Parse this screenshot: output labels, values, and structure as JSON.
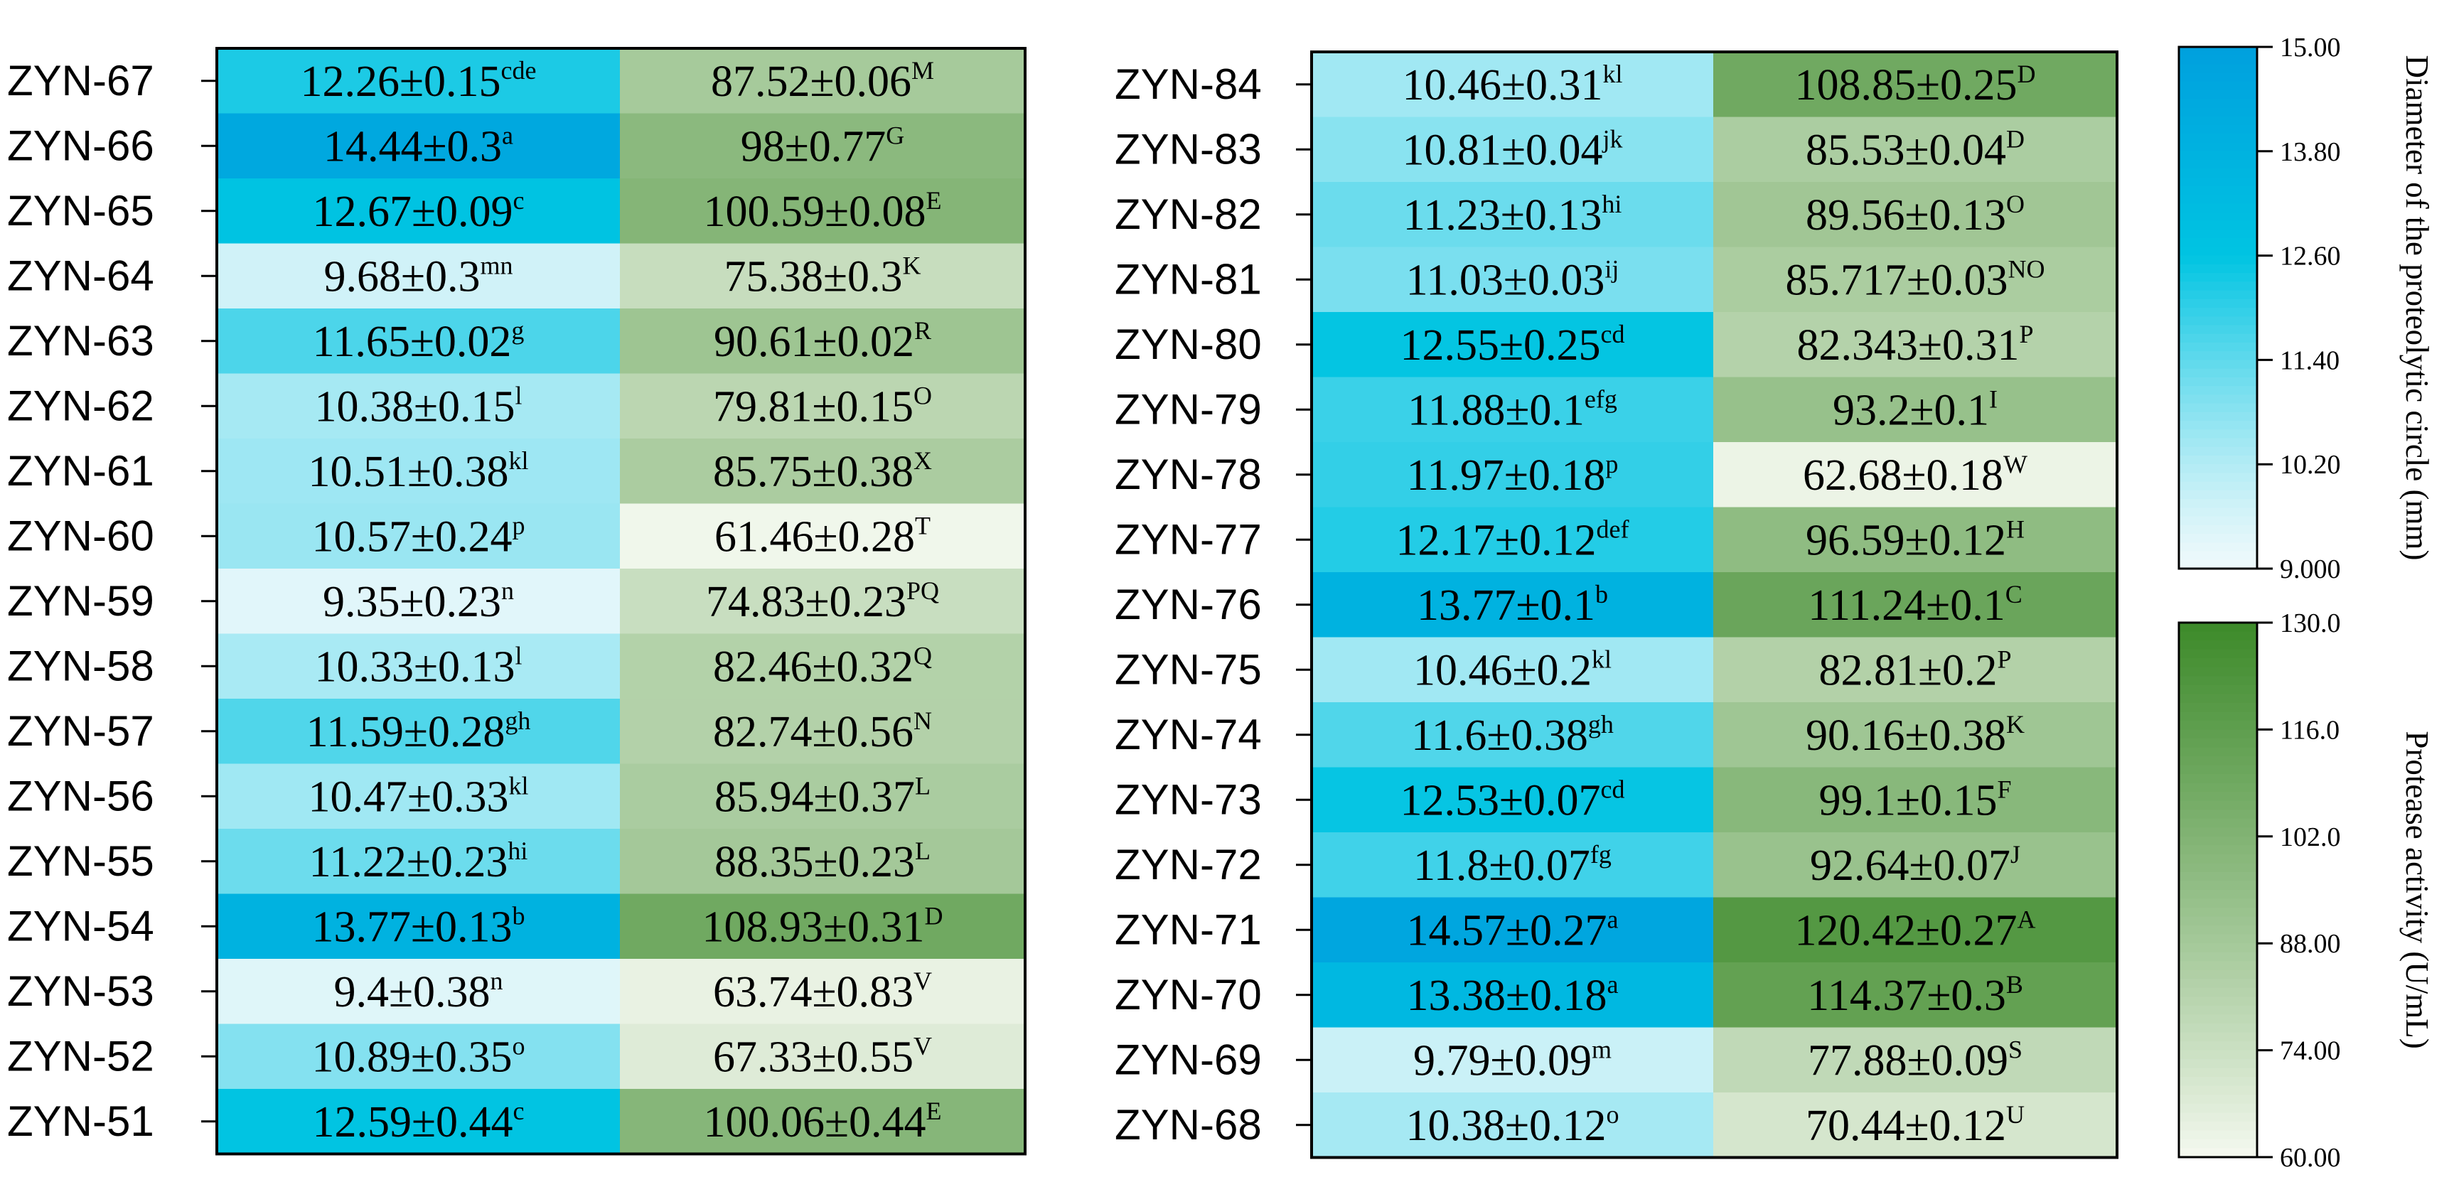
{
  "chart_data": {
    "type": "heatmap",
    "columns": [
      "Diameter of the proteolytic circle (mm)",
      "Protease activity (U/mL)"
    ],
    "panels": [
      {
        "rows": [
          "ZYN-67",
          "ZYN-66",
          "ZYN-65",
          "ZYN-64",
          "ZYN-63",
          "ZYN-62",
          "ZYN-61",
          "ZYN-60",
          "ZYN-59",
          "ZYN-58",
          "ZYN-57",
          "ZYN-56",
          "ZYN-55",
          "ZYN-54",
          "ZYN-53",
          "ZYN-52",
          "ZYN-51"
        ],
        "diameter": [
          {
            "text": "12.26±0.15",
            "sup": "cde",
            "value": 12.26
          },
          {
            "text": "14.44±0.3",
            "sup": "a",
            "value": 14.44
          },
          {
            "text": "12.67±0.09",
            "sup": "c",
            "value": 12.67
          },
          {
            "text": "9.68±0.3",
            "sup": "mn",
            "value": 9.68
          },
          {
            "text": "11.65±0.02",
            "sup": "g",
            "value": 11.65
          },
          {
            "text": "10.38±0.15",
            "sup": "l",
            "value": 10.38
          },
          {
            "text": "10.51±0.38",
            "sup": "kl",
            "value": 10.51
          },
          {
            "text": "10.57±0.24",
            "sup": "p",
            "value": 10.57
          },
          {
            "text": "9.35±0.23",
            "sup": "n",
            "value": 9.35
          },
          {
            "text": "10.33±0.13",
            "sup": "l",
            "value": 10.33
          },
          {
            "text": "11.59±0.28",
            "sup": "gh",
            "value": 11.59
          },
          {
            "text": "10.47±0.33",
            "sup": "kl",
            "value": 10.47
          },
          {
            "text": "11.22±0.23",
            "sup": "hi",
            "value": 11.22
          },
          {
            "text": "13.77±0.13",
            "sup": "b",
            "value": 13.77
          },
          {
            "text": "9.4±0.38",
            "sup": "n",
            "value": 9.4
          },
          {
            "text": "10.89±0.35",
            "sup": "o",
            "value": 10.89
          },
          {
            "text": "12.59±0.44",
            "sup": "c",
            "value": 12.59
          }
        ],
        "activity": [
          {
            "text": "87.52±0.06",
            "sup": "M",
            "value": 87.52
          },
          {
            "text": "98±0.77",
            "sup": "G",
            "value": 98
          },
          {
            "text": "100.59±0.08",
            "sup": "E",
            "value": 100.59
          },
          {
            "text": "75.38±0.3",
            "sup": "K",
            "value": 75.38
          },
          {
            "text": "90.61±0.02",
            "sup": "R",
            "value": 90.61
          },
          {
            "text": "79.81±0.15",
            "sup": "O",
            "value": 79.81
          },
          {
            "text": "85.75±0.38",
            "sup": "X",
            "value": 85.75
          },
          {
            "text": "61.46±0.28",
            "sup": "T",
            "value": 61.46
          },
          {
            "text": "74.83±0.23",
            "sup": "PQ",
            "value": 74.83
          },
          {
            "text": "82.46±0.32",
            "sup": "Q",
            "value": 82.46
          },
          {
            "text": "82.74±0.56",
            "sup": "N",
            "value": 82.74
          },
          {
            "text": "85.94±0.37",
            "sup": "L",
            "value": 85.94
          },
          {
            "text": "88.35±0.23",
            "sup": "L",
            "value": 88.35
          },
          {
            "text": "108.93±0.31",
            "sup": "D",
            "value": 108.93
          },
          {
            "text": "63.74±0.83",
            "sup": "V",
            "value": 63.74
          },
          {
            "text": "67.33±0.55",
            "sup": "V",
            "value": 67.33
          },
          {
            "text": "100.06±0.44",
            "sup": "E",
            "value": 100.06
          }
        ]
      },
      {
        "rows": [
          "ZYN-84",
          "ZYN-83",
          "ZYN-82",
          "ZYN-81",
          "ZYN-80",
          "ZYN-79",
          "ZYN-78",
          "ZYN-77",
          "ZYN-76",
          "ZYN-75",
          "ZYN-74",
          "ZYN-73",
          "ZYN-72",
          "ZYN-71",
          "ZYN-70",
          "ZYN-69",
          "ZYN-68"
        ],
        "diameter": [
          {
            "text": "10.46±0.31",
            "sup": "kl",
            "value": 10.46
          },
          {
            "text": "10.81±0.04",
            "sup": "jk",
            "value": 10.81
          },
          {
            "text": "11.23±0.13",
            "sup": "hi",
            "value": 11.23
          },
          {
            "text": "11.03±0.03",
            "sup": "ij",
            "value": 11.03
          },
          {
            "text": "12.55±0.25",
            "sup": "cd",
            "value": 12.55
          },
          {
            "text": "11.88±0.1",
            "sup": "efg",
            "value": 11.88
          },
          {
            "text": "11.97±0.18",
            "sup": "p",
            "value": 11.97
          },
          {
            "text": "12.17±0.12",
            "sup": "def",
            "value": 12.17
          },
          {
            "text": "13.77±0.1",
            "sup": "b",
            "value": 13.77
          },
          {
            "text": "10.46±0.2",
            "sup": "kl",
            "value": 10.46
          },
          {
            "text": "11.6±0.38",
            "sup": "gh",
            "value": 11.6
          },
          {
            "text": "12.53±0.07",
            "sup": "cd",
            "value": 12.53
          },
          {
            "text": "11.8±0.07",
            "sup": "fg",
            "value": 11.8
          },
          {
            "text": "14.57±0.27",
            "sup": "a",
            "value": 14.57
          },
          {
            "text": "13.38±0.18",
            "sup": "a",
            "value": 13.38
          },
          {
            "text": "9.79±0.09",
            "sup": "m",
            "value": 9.79
          },
          {
            "text": "10.38±0.12",
            "sup": "o",
            "value": 10.38
          }
        ],
        "activity": [
          {
            "text": "108.85±0.25",
            "sup": "D",
            "value": 108.85
          },
          {
            "text": "85.53±0.04",
            "sup": "D",
            "value": 85.53
          },
          {
            "text": "89.56±0.13",
            "sup": "O",
            "value": 89.56
          },
          {
            "text": "85.717±0.03",
            "sup": "NO",
            "value": 85.717
          },
          {
            "text": "82.343±0.31",
            "sup": "P",
            "value": 82.343
          },
          {
            "text": "93.2±0.1",
            "sup": "I",
            "value": 93.2
          },
          {
            "text": "62.68±0.18",
            "sup": "W",
            "value": 62.68
          },
          {
            "text": "96.59±0.12",
            "sup": "H",
            "value": 96.59
          },
          {
            "text": "111.24±0.1",
            "sup": "C",
            "value": 111.24
          },
          {
            "text": "82.81±0.2",
            "sup": "P",
            "value": 82.81
          },
          {
            "text": "90.16±0.38",
            "sup": "K",
            "value": 90.16
          },
          {
            "text": "99.1±0.15",
            "sup": "F",
            "value": 99.1
          },
          {
            "text": "92.64±0.07",
            "sup": "J",
            "value": 92.64
          },
          {
            "text": "120.42±0.27",
            "sup": "A",
            "value": 120.42
          },
          {
            "text": "114.37±0.3",
            "sup": "B",
            "value": 114.37
          },
          {
            "text": "77.88±0.09",
            "sup": "S",
            "value": 77.88
          },
          {
            "text": "70.44±0.12",
            "sup": "U",
            "value": 70.44
          }
        ]
      }
    ],
    "colorbars": [
      {
        "label": "Diameter of the proteolytic circle (mm)",
        "range": [
          9.0,
          15.0
        ],
        "ticks": [
          "15.00",
          "13.80",
          "12.60",
          "11.40",
          "10.20",
          "9.000"
        ],
        "colors": {
          "low": "#eef9fb",
          "mid": "#00c4e2",
          "high": "#00a0de"
        }
      },
      {
        "label": "Protease activity (U/mL)",
        "range": [
          60.0,
          130.0
        ],
        "ticks": [
          "130.0",
          "116.0",
          "102.0",
          "88.00",
          "74.00",
          "60.00"
        ],
        "colors": {
          "low": "#f6faf1",
          "high": "#3d8a2a"
        }
      }
    ]
  }
}
